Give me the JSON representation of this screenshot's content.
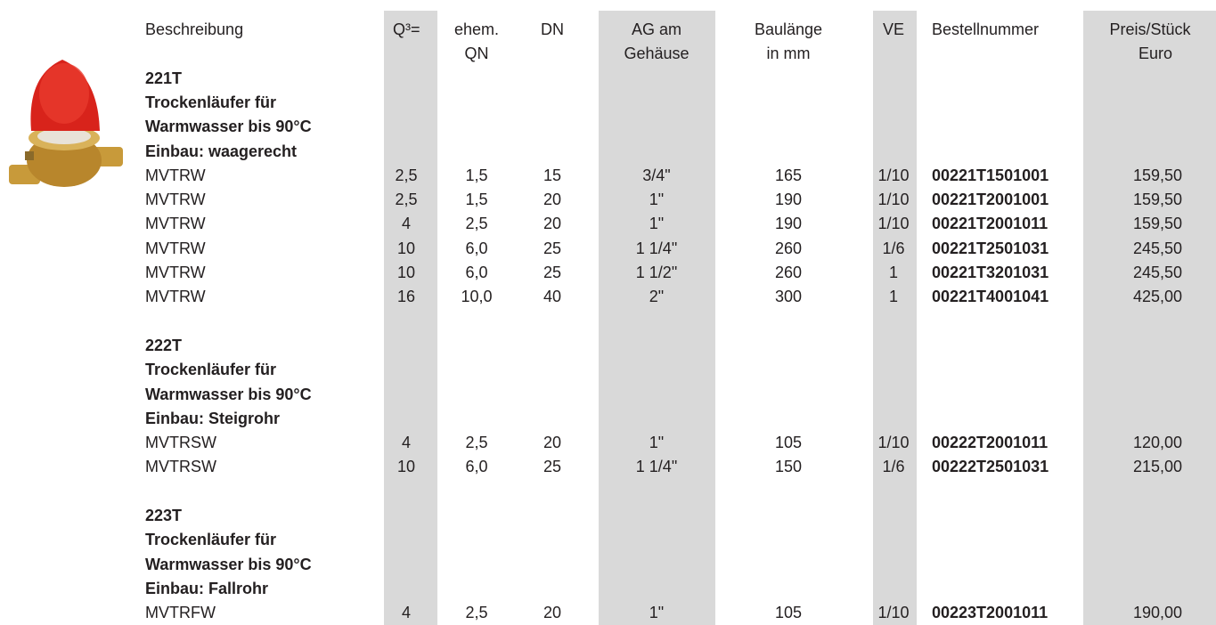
{
  "header": {
    "columns": [
      [
        "Beschreibung"
      ],
      [
        "Q³="
      ],
      [
        "ehem.",
        "QN"
      ],
      [
        "DN"
      ],
      [
        "AG am",
        "Gehäuse"
      ],
      [
        "Baulänge",
        "in mm"
      ],
      [
        "VE"
      ],
      [
        "Bestellnummer"
      ],
      [
        "Preis/Stück",
        "Euro"
      ]
    ]
  },
  "sections": [
    {
      "title": [
        "221T",
        "Trockenläufer für",
        "Warmwasser bis 90°C",
        "Einbau: waagerecht"
      ],
      "rows": [
        [
          "MVTRW",
          "2,5",
          "1,5",
          "15",
          "3/4\"",
          "165",
          "1/10",
          "00221T1501001",
          "159,50"
        ],
        [
          "MVTRW",
          "2,5",
          "1,5",
          "20",
          "1\"",
          "190",
          "1/10",
          "00221T2001001",
          "159,50"
        ],
        [
          "MVTRW",
          "4",
          "2,5",
          "20",
          "1\"",
          "190",
          "1/10",
          "00221T2001011",
          "159,50"
        ],
        [
          "MVTRW",
          "10",
          "6,0",
          "25",
          "1 1/4\"",
          "260",
          "1/6",
          "00221T2501031",
          "245,50"
        ],
        [
          "MVTRW",
          "10",
          "6,0",
          "25",
          "1 1/2\"",
          "260",
          "1",
          "00221T3201031",
          "245,50"
        ],
        [
          "MVTRW",
          "16",
          "10,0",
          "40",
          "2\"",
          "300",
          "1",
          "00221T4001041",
          "425,00"
        ]
      ]
    },
    {
      "title": [
        "222T",
        "Trockenläufer für",
        "Warmwasser bis 90°C",
        "Einbau: Steigrohr"
      ],
      "rows": [
        [
          "MVTRSW",
          "4",
          "2,5",
          "20",
          "1\"",
          "105",
          "1/10",
          "00222T2001011",
          "120,00"
        ],
        [
          "MVTRSW",
          "10",
          "6,0",
          "25",
          "1 1/4\"",
          "150",
          "1/6",
          "00222T2501031",
          "215,00"
        ]
      ]
    },
    {
      "title": [
        "223T",
        "Trockenläufer für",
        "Warmwasser bis 90°C",
        "Einbau: Fallrohr"
      ],
      "rows": [
        [
          "MVTRFW",
          "4",
          "2,5",
          "20",
          "1\"",
          "105",
          "1/10",
          "00223T2001011",
          "190,00"
        ]
      ]
    }
  ]
}
